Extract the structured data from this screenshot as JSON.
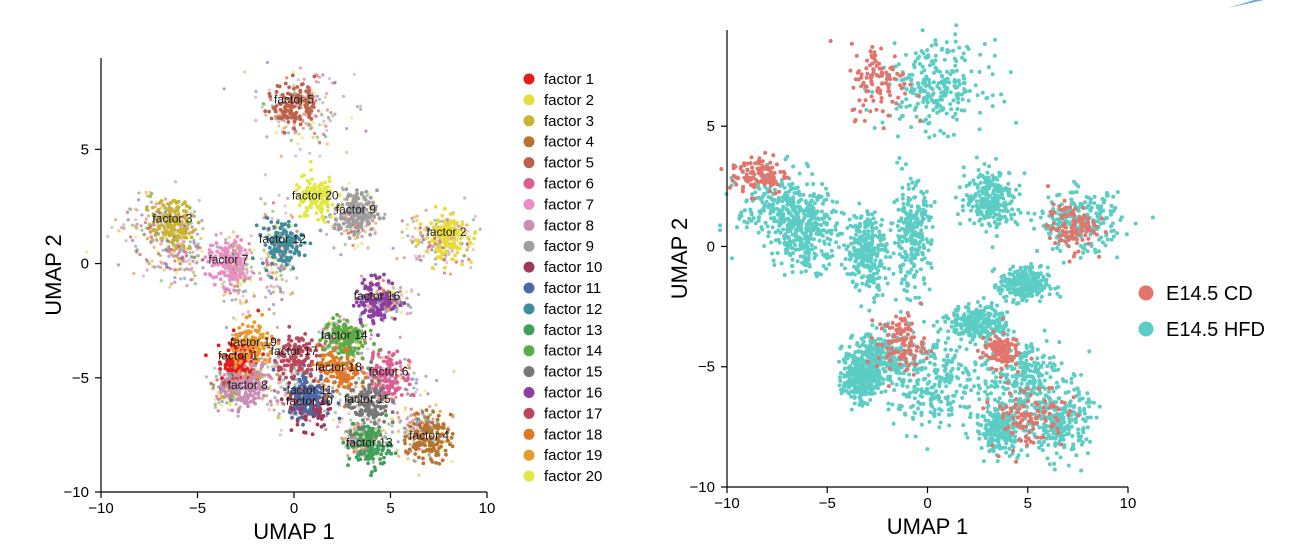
{
  "chart_data": [
    {
      "type": "scatter",
      "xlabel": "UMAP 1",
      "ylabel": "UMAP 2",
      "xlim": [
        -10,
        10
      ],
      "ylim": [
        -10,
        9
      ],
      "xticks": [
        -10,
        -5,
        0,
        5,
        10
      ],
      "yticks": [
        -10,
        -5,
        0,
        5
      ],
      "legend_position": "right",
      "series": [
        {
          "name": "factor 1",
          "color": "#e41a1c",
          "label_point": [
            -2.9,
            -4.2
          ]
        },
        {
          "name": "factor 2",
          "color": "#e8dc37",
          "label_point": [
            7.9,
            1.2
          ]
        },
        {
          "name": "factor 3",
          "color": "#c8b42e",
          "label_point": [
            -6.3,
            1.8
          ]
        },
        {
          "name": "factor 4",
          "color": "#b8732c",
          "label_point": [
            7.0,
            -7.7
          ]
        },
        {
          "name": "factor 5",
          "color": "#c0604a",
          "label_point": [
            0.0,
            7.0
          ]
        },
        {
          "name": "factor 6",
          "color": "#de5e93",
          "label_point": [
            4.9,
            -4.9
          ]
        },
        {
          "name": "factor 7",
          "color": "#e98fc6",
          "label_point": [
            -3.4,
            0.0
          ]
        },
        {
          "name": "factor 8",
          "color": "#c98db6",
          "label_point": [
            -2.4,
            -5.5
          ]
        },
        {
          "name": "factor 9",
          "color": "#9e9e9e",
          "label_point": [
            3.2,
            2.2
          ]
        },
        {
          "name": "factor 10",
          "color": "#9b3a5a",
          "label_point": [
            0.8,
            -6.2
          ]
        },
        {
          "name": "factor 11",
          "color": "#4b6aa8",
          "label_point": [
            0.8,
            -5.7
          ]
        },
        {
          "name": "factor 12",
          "color": "#3e8d9c",
          "label_point": [
            -0.6,
            0.9
          ]
        },
        {
          "name": "factor 13",
          "color": "#3fa05a",
          "label_point": [
            3.9,
            -8.0
          ]
        },
        {
          "name": "factor 14",
          "color": "#5aac45",
          "label_point": [
            2.6,
            -3.3
          ]
        },
        {
          "name": "factor 15",
          "color": "#777777",
          "label_point": [
            3.8,
            -6.1
          ]
        },
        {
          "name": "factor 16",
          "color": "#8e3fa3",
          "label_point": [
            4.3,
            -1.6
          ]
        },
        {
          "name": "factor 17",
          "color": "#b8485a",
          "label_point": [
            0.0,
            -4.0
          ]
        },
        {
          "name": "factor 18",
          "color": "#e07826",
          "label_point": [
            2.3,
            -4.7
          ]
        },
        {
          "name": "factor 19",
          "color": "#e99a2c",
          "label_point": [
            -2.1,
            -3.6
          ]
        },
        {
          "name": "factor 20",
          "color": "#e3e840",
          "label_point": [
            1.1,
            2.8
          ]
        }
      ]
    },
    {
      "type": "scatter",
      "xlabel": "UMAP 1",
      "ylabel": "UMAP 2",
      "xlim": [
        -10,
        10
      ],
      "ylim": [
        -10,
        9
      ],
      "xticks": [
        -10,
        -5,
        0,
        5,
        10
      ],
      "yticks": [
        -10,
        -5,
        0,
        5
      ],
      "legend_position": "right",
      "series": [
        {
          "name": "E14.5 CD",
          "color": "#e3746c"
        },
        {
          "name": "E14.5 HFD",
          "color": "#5ccdc4"
        }
      ]
    }
  ]
}
